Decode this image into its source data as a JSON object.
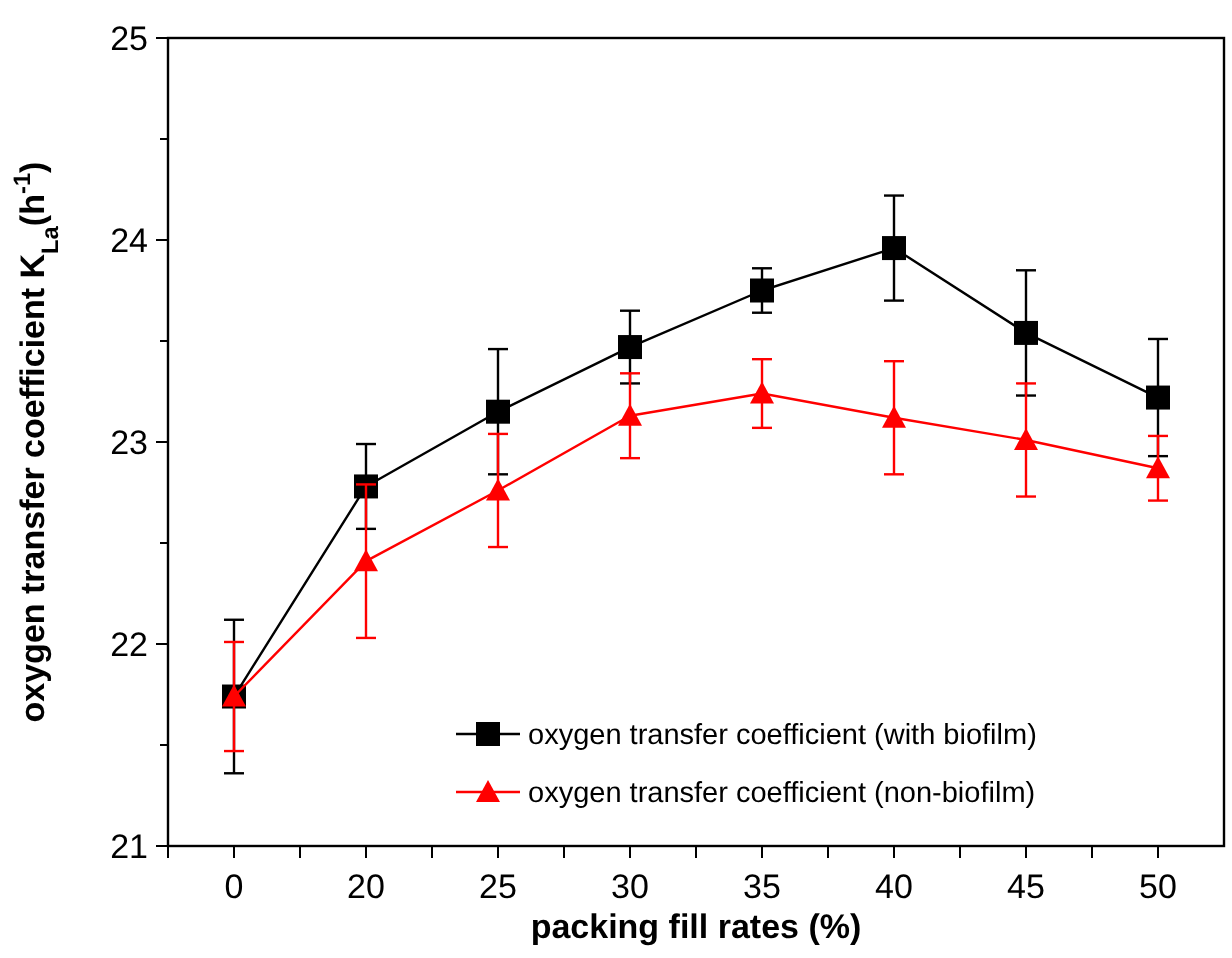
{
  "chart_data": {
    "type": "line",
    "xlabel": "packing fill rates (%)",
    "ylabel": "oxygen transfer coefficient  K$_{La}$(h$^{-1}$)",
    "categories": [
      "0",
      "20",
      "25",
      "30",
      "35",
      "40",
      "45",
      "50"
    ],
    "series": [
      {
        "name": "oxygen transfer coefficient (with biofilm)",
        "color": "#000000",
        "marker": "square",
        "values": [
          21.74,
          22.78,
          23.15,
          23.47,
          23.75,
          23.96,
          23.54,
          23.22
        ],
        "errors": [
          0.38,
          0.21,
          0.31,
          0.18,
          0.11,
          0.26,
          0.31,
          0.29
        ]
      },
      {
        "name": "oxygen transfer coefficient (non-biofilm)",
        "color": "#ff0000",
        "marker": "triangle",
        "values": [
          21.74,
          22.41,
          22.76,
          23.13,
          23.24,
          23.12,
          23.01,
          22.87
        ],
        "errors": [
          0.27,
          0.38,
          0.28,
          0.21,
          0.17,
          0.28,
          0.28,
          0.16
        ]
      }
    ],
    "ylim": [
      21,
      25
    ],
    "yticks": [
      21,
      22,
      23,
      24,
      25
    ],
    "grid": false,
    "legend": "bottom right",
    "line_style": "solid"
  }
}
